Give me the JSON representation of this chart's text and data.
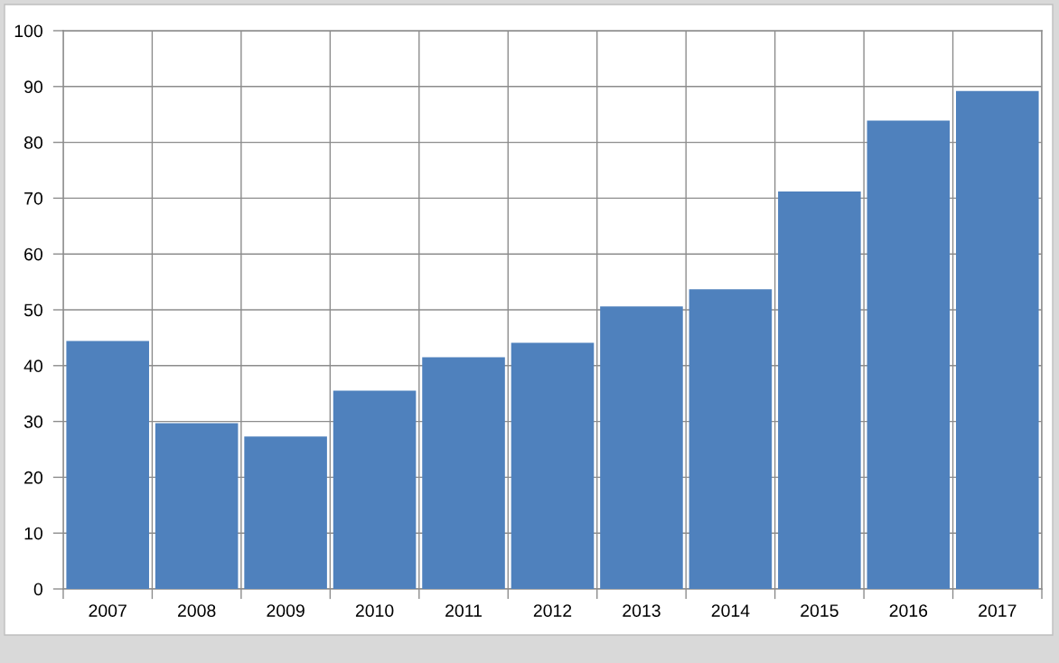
{
  "chart_data": {
    "type": "bar",
    "categories": [
      "2007",
      "2008",
      "2009",
      "2010",
      "2011",
      "2012",
      "2013",
      "2014",
      "2015",
      "2016",
      "2017"
    ],
    "values": [
      44.4,
      29.7,
      27.3,
      35.5,
      41.5,
      44.1,
      50.6,
      53.7,
      71.2,
      83.9,
      89.2
    ],
    "color": "#4f81bd",
    "ylim": [
      0,
      100
    ],
    "yticks": [
      0,
      10,
      20,
      30,
      40,
      50,
      60,
      70,
      80,
      90,
      100
    ],
    "grid": true
  }
}
